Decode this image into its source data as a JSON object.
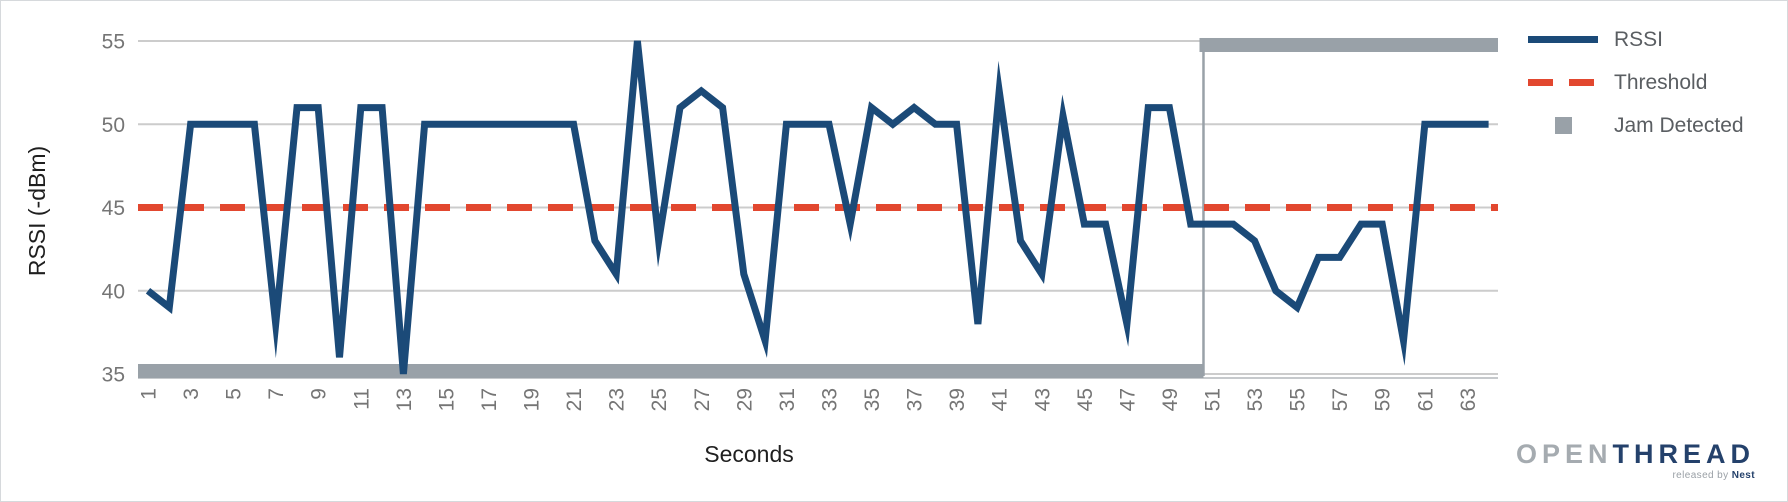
{
  "chart_data": {
    "type": "line",
    "title": "",
    "xlabel": "Seconds",
    "ylabel": "RSSI (-dBm)",
    "ylim": [
      35,
      55
    ],
    "y_ticks": [
      35,
      40,
      45,
      50,
      55
    ],
    "x_ticks": [
      1,
      3,
      5,
      7,
      9,
      11,
      13,
      15,
      17,
      19,
      21,
      23,
      25,
      27,
      29,
      31,
      33,
      35,
      37,
      39,
      41,
      43,
      45,
      47,
      49,
      51,
      53,
      55,
      57,
      59,
      61,
      63
    ],
    "x_range_padding": [
      0.5,
      64.5
    ],
    "grid": true,
    "legend_position": "right",
    "x": [
      1,
      2,
      3,
      4,
      5,
      6,
      7,
      8,
      9,
      10,
      11,
      12,
      13,
      14,
      15,
      16,
      17,
      18,
      19,
      20,
      21,
      22,
      23,
      24,
      25,
      26,
      27,
      28,
      29,
      30,
      31,
      32,
      33,
      34,
      35,
      36,
      37,
      38,
      39,
      40,
      41,
      42,
      43,
      44,
      45,
      46,
      47,
      48,
      49,
      50,
      51,
      52,
      53,
      54,
      55,
      56,
      57,
      58,
      59,
      60,
      61,
      62,
      63,
      64
    ],
    "series": [
      {
        "name": "RSSI",
        "type": "line",
        "color": "#1B4A78",
        "values": [
          40,
          39,
          50,
          50,
          50,
          50,
          38,
          51,
          51,
          36,
          51,
          51,
          35,
          50,
          50,
          50,
          50,
          50,
          50,
          50,
          50,
          43,
          41,
          55,
          43,
          51,
          52,
          51,
          41,
          37,
          50,
          50,
          50,
          44,
          51,
          50,
          51,
          50,
          50,
          38,
          52,
          43,
          41,
          50.5,
          44,
          44,
          38,
          51,
          51,
          44,
          44,
          44,
          43,
          40,
          39,
          42,
          42,
          44,
          44,
          37,
          50,
          50,
          50,
          50
        ]
      },
      {
        "name": "Threshold",
        "type": "line",
        "style": "dashed",
        "color": "#E2472F",
        "value": 45
      },
      {
        "name": "Jam Detected",
        "type": "step",
        "color": "#99A1A8",
        "inactive_value": 35,
        "active_value": 54.7,
        "inactive_seconds": [
          1,
          50
        ],
        "active_seconds": [
          51,
          64
        ],
        "transition_second": 50.6
      }
    ]
  },
  "axis_colors": {
    "tick_label": "#757575",
    "gridline": "#cccccc",
    "axis_title": "#1f1f1f"
  },
  "logo": {
    "open": "OPEN",
    "thread": "THREAD",
    "sub_prefix": "released by ",
    "sub_brand": "Nest"
  }
}
